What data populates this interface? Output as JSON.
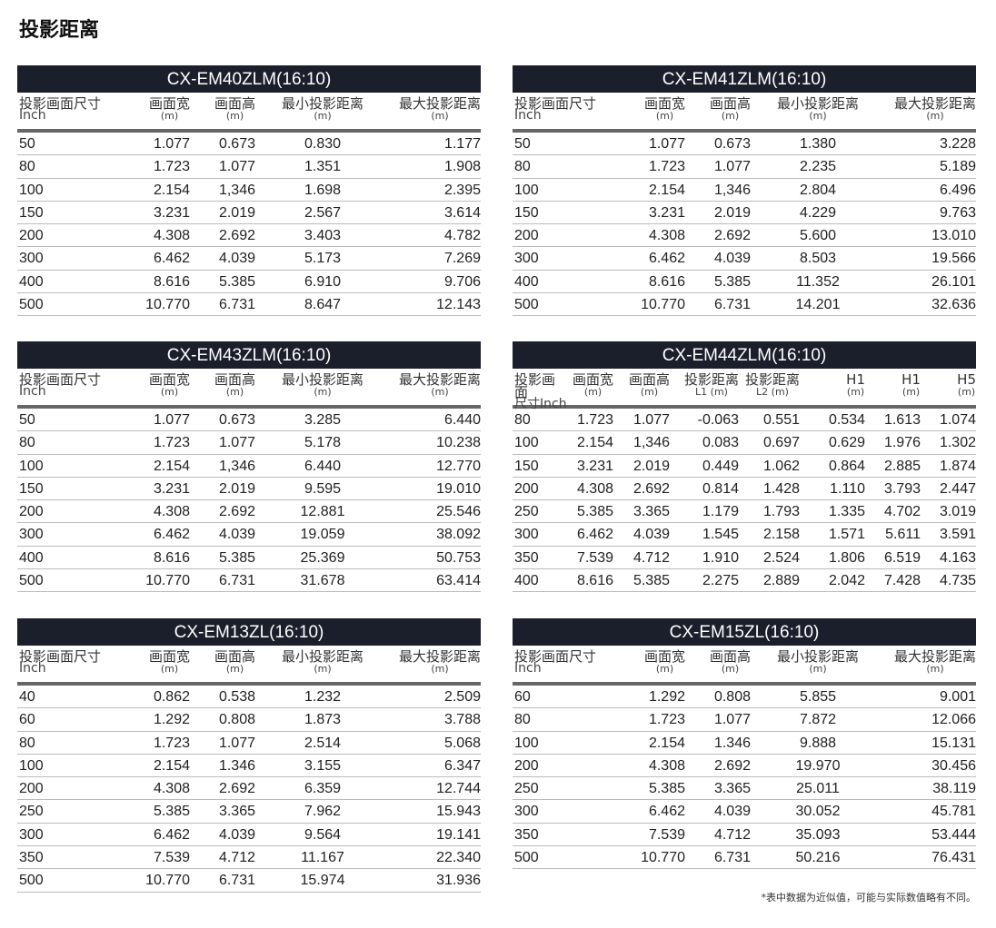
{
  "page_title": "投影距离",
  "footnote": "*表中数据为近似值，可能与实际数值略有不同。",
  "colors": {
    "header_bar": "#1b1f2c",
    "header_text": "#ffffff"
  },
  "tables": [
    {
      "model": "CX-EM40ZLM(16:10)",
      "columns": [
        {
          "label": "投影画面尺寸",
          "unit": "Inch"
        },
        {
          "label": "画面宽",
          "unit": "(m)"
        },
        {
          "label": "画面高",
          "unit": "(m)"
        },
        {
          "label": "最小投影距离",
          "unit": "(m)"
        },
        {
          "label": "最大投影距离",
          "unit": "(m)"
        }
      ],
      "rows": [
        [
          "50",
          "1.077",
          "0.673",
          "0.830",
          "1.177"
        ],
        [
          "80",
          "1.723",
          "1.077",
          "1.351",
          "1.908"
        ],
        [
          "100",
          "2.154",
          "1,346",
          "1.698",
          "2.395"
        ],
        [
          "150",
          "3.231",
          "2.019",
          "2.567",
          "3.614"
        ],
        [
          "200",
          "4.308",
          "2.692",
          "3.403",
          "4.782"
        ],
        [
          "300",
          "6.462",
          "4.039",
          "5.173",
          "7.269"
        ],
        [
          "400",
          "8.616",
          "5.385",
          "6.910",
          "9.706"
        ],
        [
          "500",
          "10.770",
          "6.731",
          "8.647",
          "12.143"
        ]
      ]
    },
    {
      "model": "CX-EM41ZLM(16:10)",
      "columns": [
        {
          "label": "投影画面尺寸",
          "unit": "Inch"
        },
        {
          "label": "画面宽",
          "unit": "(m)"
        },
        {
          "label": "画面高",
          "unit": "(m)"
        },
        {
          "label": "最小投影距离",
          "unit": "(m)"
        },
        {
          "label": "最大投影距离",
          "unit": "(m)"
        }
      ],
      "rows": [
        [
          "50",
          "1.077",
          "0.673",
          "1.380",
          "3.228"
        ],
        [
          "80",
          "1.723",
          "1.077",
          "2.235",
          "5.189"
        ],
        [
          "100",
          "2.154",
          "1,346",
          "2.804",
          "6.496"
        ],
        [
          "150",
          "3.231",
          "2.019",
          "4.229",
          "9.763"
        ],
        [
          "200",
          "4.308",
          "2.692",
          "5.600",
          "13.010"
        ],
        [
          "300",
          "6.462",
          "4.039",
          "8.503",
          "19.566"
        ],
        [
          "400",
          "8.616",
          "5.385",
          "11.352",
          "26.101"
        ],
        [
          "500",
          "10.770",
          "6.731",
          "14.201",
          "32.636"
        ]
      ]
    },
    {
      "model": "CX-EM43ZLM(16:10)",
      "columns": [
        {
          "label": "投影画面尺寸",
          "unit": "Inch"
        },
        {
          "label": "画面宽",
          "unit": "(m)"
        },
        {
          "label": "画面高",
          "unit": "(m)"
        },
        {
          "label": "最小投影距离",
          "unit": "(m)"
        },
        {
          "label": "最大投影距离",
          "unit": "(m)"
        }
      ],
      "rows": [
        [
          "50",
          "1.077",
          "0.673",
          "3.285",
          "6.440"
        ],
        [
          "80",
          "1.723",
          "1.077",
          "5.178",
          "10.238"
        ],
        [
          "100",
          "2.154",
          "1,346",
          "6.440",
          "12.770"
        ],
        [
          "150",
          "3.231",
          "2.019",
          "9.595",
          "19.010"
        ],
        [
          "200",
          "4.308",
          "2.692",
          "12.881",
          "25.546"
        ],
        [
          "300",
          "6.462",
          "4.039",
          "19.059",
          "38.092"
        ],
        [
          "400",
          "8.616",
          "5.385",
          "25.369",
          "50.753"
        ],
        [
          "500",
          "10.770",
          "6.731",
          "31.678",
          "63.414"
        ]
      ]
    },
    {
      "model": "CX-EM44ZLM(16:10)",
      "columns": [
        {
          "label": "投影画面",
          "unit": "尺寸Inch"
        },
        {
          "label": "画面宽",
          "unit": "(m)"
        },
        {
          "label": "画面高",
          "unit": "(m)"
        },
        {
          "label": "投影距离",
          "unit": "L1 (m)"
        },
        {
          "label": "投影距离",
          "unit": "L2 (m)"
        },
        {
          "label": "H1",
          "unit": "(m)"
        },
        {
          "label": "H1",
          "unit": "(m)"
        },
        {
          "label": "H5",
          "unit": "(m)"
        }
      ],
      "rows": [
        [
          "80",
          "1.723",
          "1.077",
          "-0.063",
          "0.551",
          "0.534",
          "1.613",
          "1.074"
        ],
        [
          "100",
          "2.154",
          "1,346",
          "0.083",
          "0.697",
          "0.629",
          "1.976",
          "1.302"
        ],
        [
          "150",
          "3.231",
          "2.019",
          "0.449",
          "1.062",
          "0.864",
          "2.885",
          "1.874"
        ],
        [
          "200",
          "4.308",
          "2.692",
          "0.814",
          "1.428",
          "1.110",
          "3.793",
          "2.447"
        ],
        [
          "250",
          "5.385",
          "3.365",
          "1.179",
          "1.793",
          "1.335",
          "4.702",
          "3.019"
        ],
        [
          "300",
          "6.462",
          "4.039",
          "1.545",
          "2.158",
          "1.571",
          "5.611",
          "3.591"
        ],
        [
          "350",
          "7.539",
          "4.712",
          "1.910",
          "2.524",
          "1.806",
          "6.519",
          "4.163"
        ],
        [
          "400",
          "8.616",
          "5.385",
          "2.275",
          "2.889",
          "2.042",
          "7.428",
          "4.735"
        ]
      ]
    },
    {
      "model": "CX-EM13ZL(16:10)",
      "columns": [
        {
          "label": "投影画面尺寸",
          "unit": "Inch"
        },
        {
          "label": "画面宽",
          "unit": "(m)"
        },
        {
          "label": "画面高",
          "unit": "(m)"
        },
        {
          "label": "最小投影距离",
          "unit": "(m)"
        },
        {
          "label": "最大投影距离",
          "unit": "(m)"
        }
      ],
      "rows": [
        [
          "40",
          "0.862",
          "0.538",
          "1.232",
          "2.509"
        ],
        [
          "60",
          "1.292",
          "0.808",
          "1.873",
          "3.788"
        ],
        [
          "80",
          "1.723",
          "1.077",
          "2.514",
          "5.068"
        ],
        [
          "100",
          "2.154",
          "1.346",
          "3.155",
          "6.347"
        ],
        [
          "200",
          "4.308",
          "2.692",
          "6.359",
          "12.744"
        ],
        [
          "250",
          "5.385",
          "3.365",
          "7.962",
          "15.943"
        ],
        [
          "300",
          "6.462",
          "4.039",
          "9.564",
          "19.141"
        ],
        [
          "350",
          "7.539",
          "4.712",
          "11.167",
          "22.340"
        ],
        [
          "500",
          "10.770",
          "6.731",
          "15.974",
          "31.936"
        ]
      ]
    },
    {
      "model": "CX-EM15ZL(16:10)",
      "columns": [
        {
          "label": "投影画面尺寸",
          "unit": "Inch"
        },
        {
          "label": "画面宽",
          "unit": "(m)"
        },
        {
          "label": "画面高",
          "unit": "(m)"
        },
        {
          "label": "最小投影距离",
          "unit": "(m)"
        },
        {
          "label": "最大投影距离",
          "unit": "(m)"
        }
      ],
      "rows": [
        [
          "60",
          "1.292",
          "0.808",
          "5.855",
          "9.001"
        ],
        [
          "80",
          "1.723",
          "1.077",
          "7.872",
          "12.066"
        ],
        [
          "100",
          "2.154",
          "1.346",
          "9.888",
          "15.131"
        ],
        [
          "200",
          "4.308",
          "2.692",
          "19.970",
          "30.456"
        ],
        [
          "250",
          "5.385",
          "3.365",
          "25.011",
          "38.119"
        ],
        [
          "300",
          "6.462",
          "4.039",
          "30.052",
          "45.781"
        ],
        [
          "350",
          "7.539",
          "4.712",
          "35.093",
          "53.444"
        ],
        [
          "500",
          "10.770",
          "6.731",
          "50.216",
          "76.431"
        ]
      ]
    }
  ]
}
